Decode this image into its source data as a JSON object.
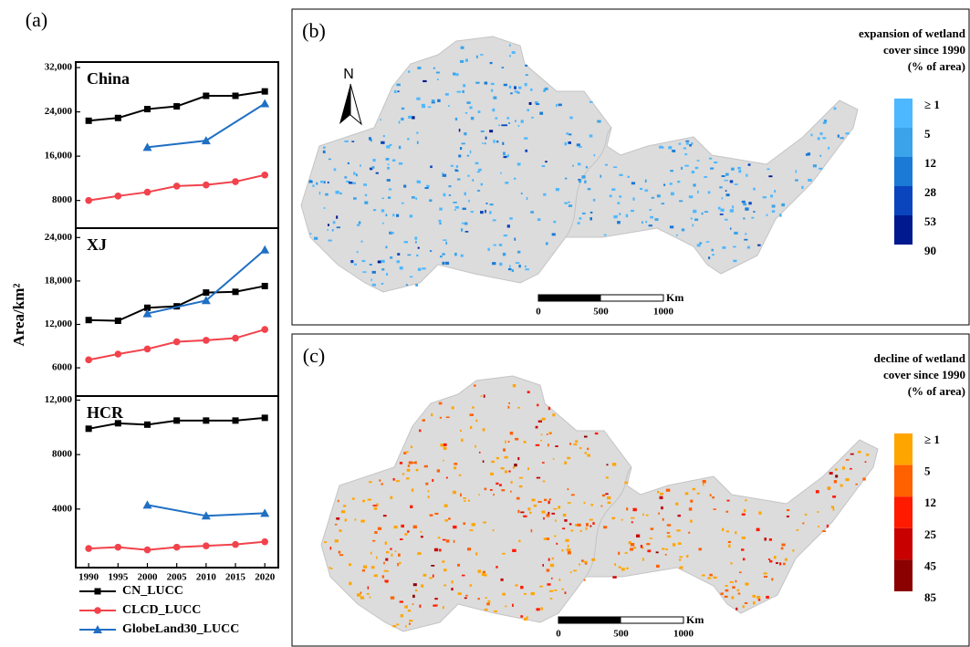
{
  "panel_label": "(a)",
  "y_label": "Area/km²",
  "chart_data": [
    {
      "type": "line",
      "title": "China",
      "x": [
        1990,
        1995,
        2000,
        2005,
        2010,
        2015,
        2020
      ],
      "xlim": [
        1987.8,
        2022.3
      ],
      "ylim": [
        3000,
        33000
      ],
      "yticks": [
        {
          "value": 8000,
          "label": "8000"
        },
        {
          "value": 16000,
          "label": "16,000"
        },
        {
          "value": 24000,
          "label": "24,000"
        },
        {
          "value": 32000,
          "label": "32,000"
        }
      ],
      "series": [
        {
          "name": "CN_LUCC",
          "color": "#000000",
          "marker": "square",
          "values": [
            22400,
            22900,
            24500,
            25000,
            26900,
            26900,
            27700
          ]
        },
        {
          "name": "CLCD_LUCC",
          "color": "#f2424b",
          "marker": "circle",
          "values": [
            8000,
            8800,
            9500,
            10600,
            10800,
            11400,
            12600
          ]
        },
        {
          "name": "GlobeLand30_LUCC",
          "color": "#1f6fc4",
          "marker": "triangle",
          "x": [
            2000,
            2010,
            2020
          ],
          "values": [
            17600,
            18800,
            25500
          ]
        }
      ]
    },
    {
      "type": "line",
      "title": "XJ",
      "x": [
        1990,
        1995,
        2000,
        2005,
        2010,
        2015,
        2020
      ],
      "xlim": [
        1987.8,
        2022.3
      ],
      "ylim": [
        2100,
        25300
      ],
      "yticks": [
        6000,
        12000,
        18000,
        24000
      ],
      "ytick_labels": [
        "6000",
        "12,000",
        "18,000",
        "24,000"
      ],
      "series": [
        {
          "color": "#000000",
          "marker": "square",
          "values": [
            12600,
            12500,
            14300,
            14500,
            16400,
            16500,
            17300
          ]
        },
        {
          "color": "#f2424b",
          "marker": "circle",
          "values": [
            7100,
            7900,
            8600,
            9600,
            9800,
            10100,
            11300
          ]
        },
        {
          "color": "#1f6fc4",
          "marker": "triangle",
          "x": [
            2000,
            2010,
            2020
          ],
          "values": [
            13500,
            15300,
            22300
          ]
        }
      ]
    },
    {
      "type": "line",
      "title": "HCR",
      "x": [
        1990,
        1995,
        2000,
        2005,
        2010,
        2015,
        2020
      ],
      "xlim": [
        1987.8,
        2022.3
      ],
      "ylim": [
        -300,
        12300
      ],
      "yticks": [
        {
          "value": 4000,
          "label": "4000"
        },
        {
          "value": 8000,
          "label": "8000"
        },
        {
          "value": 12000,
          "label": "12,000"
        }
      ],
      "xticks": [
        1990,
        1995,
        2000,
        2005,
        2010,
        2015,
        2020
      ],
      "series": [
        {
          "color": "#000000",
          "marker": "square",
          "values": [
            9900,
            10300,
            10200,
            10500,
            10500,
            10500,
            10700
          ]
        },
        {
          "color": "#f2424b",
          "marker": "circle",
          "values": [
            1100,
            1200,
            1000,
            1200,
            1300,
            1400,
            1600
          ]
        },
        {
          "color": "#1f6fc4",
          "marker": "triangle",
          "x": [
            2000,
            2010,
            2020
          ],
          "values": [
            4300,
            3500,
            3700
          ]
        }
      ]
    }
  ],
  "maps": [
    {
      "panel_label": "(b)",
      "legend_title": [
        "expansion of wetland",
        "cover since 1990",
        "(% of area)"
      ],
      "legend_colors": [
        "#4db8ff",
        "#3aa3ea",
        "#1a7ad6",
        "#0a45bd",
        "#00198f"
      ],
      "legend_labels": [
        "≥ 1",
        "5",
        "12",
        "28",
        "53",
        "90"
      ],
      "north": "N",
      "scale_unit": "Km",
      "scale_labels": [
        "0",
        "500",
        "1000"
      ]
    },
    {
      "panel_label": "(c)",
      "legend_title": [
        "decline of wetland",
        "cover since 1990",
        "(% of area)"
      ],
      "legend_colors": [
        "#ffa500",
        "#ff6000",
        "#ff1a00",
        "#c80000",
        "#8b0000"
      ],
      "legend_labels": [
        "≥ 1",
        "5",
        "12",
        "25",
        "45",
        "85"
      ],
      "scale_unit": "Km",
      "scale_labels": [
        "0",
        "500",
        "1000"
      ]
    }
  ]
}
